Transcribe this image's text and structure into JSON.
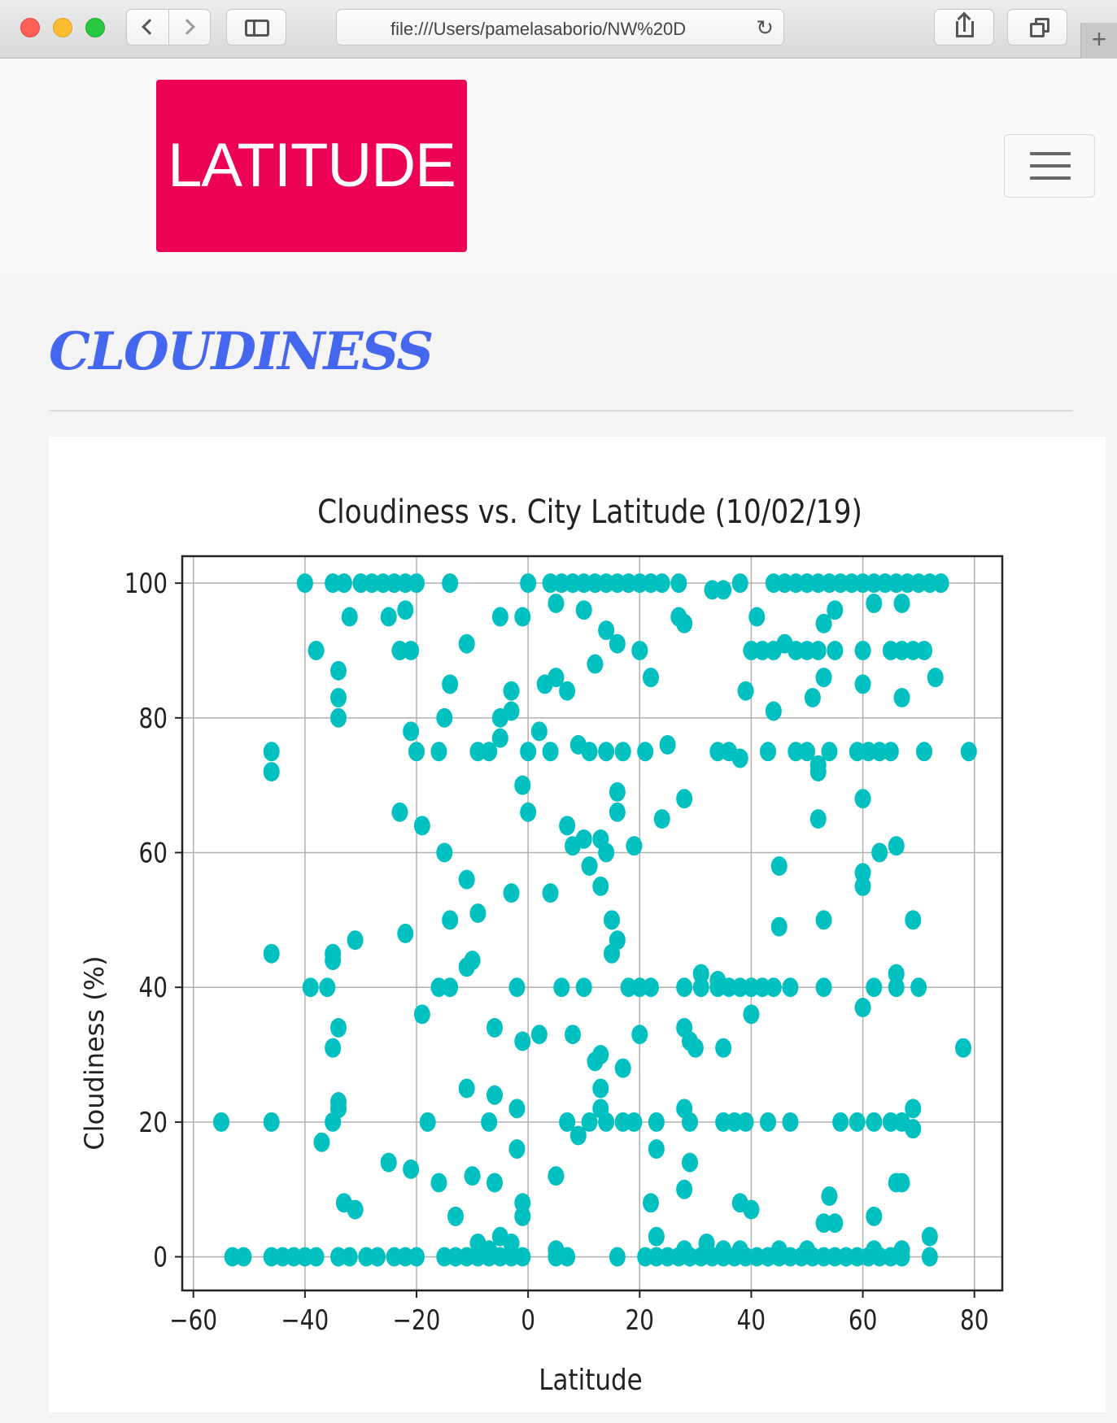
{
  "browser": {
    "url": "file:///Users/pamelasaborio/NW%20D"
  },
  "navbar": {
    "brand": "LATITUDE"
  },
  "page": {
    "heading": "CLOUDINESS"
  },
  "colors": {
    "brand": "#ec0157",
    "heading": "#4566ee",
    "points": "#00c0c0"
  },
  "chart_data": {
    "type": "scatter",
    "title": "Cloudiness vs. City Latitude (10/02/19)",
    "xlabel": "Latitude",
    "ylabel": "Cloudiness (%)",
    "xlim": [
      -62,
      85
    ],
    "ylim": [
      -5,
      104
    ],
    "xticks": [
      -60,
      -40,
      -20,
      0,
      20,
      40,
      60,
      80
    ],
    "yticks": [
      0,
      20,
      40,
      60,
      80,
      100
    ],
    "xtick_labels": [
      "−60",
      "−40",
      "−20",
      "0",
      "20",
      "40",
      "60",
      "80"
    ],
    "ytick_labels": [
      "0",
      "20",
      "40",
      "60",
      "80",
      "100"
    ],
    "grid": true,
    "series": [
      {
        "color": "#00c0c0",
        "points": [
          [
            -40,
            100
          ],
          [
            -35,
            100
          ],
          [
            -33,
            100
          ],
          [
            -30,
            100
          ],
          [
            -28,
            100
          ],
          [
            -26,
            100
          ],
          [
            -24,
            100
          ],
          [
            -22,
            100
          ],
          [
            -20,
            100
          ],
          [
            -14,
            100
          ],
          [
            0,
            100
          ],
          [
            4,
            100
          ],
          [
            6,
            100
          ],
          [
            8,
            100
          ],
          [
            10,
            100
          ],
          [
            12,
            100
          ],
          [
            14,
            100
          ],
          [
            16,
            100
          ],
          [
            18,
            100
          ],
          [
            20,
            100
          ],
          [
            22,
            100
          ],
          [
            24,
            100
          ],
          [
            27,
            100
          ],
          [
            33,
            99
          ],
          [
            35,
            99
          ],
          [
            38,
            100
          ],
          [
            44,
            100
          ],
          [
            46,
            100
          ],
          [
            48,
            100
          ],
          [
            50,
            100
          ],
          [
            52,
            100
          ],
          [
            54,
            100
          ],
          [
            56,
            100
          ],
          [
            58,
            100
          ],
          [
            60,
            100
          ],
          [
            62,
            100
          ],
          [
            64,
            100
          ],
          [
            66,
            100
          ],
          [
            68,
            100
          ],
          [
            70,
            100
          ],
          [
            72,
            100
          ],
          [
            74,
            100
          ],
          [
            -32,
            95
          ],
          [
            -25,
            95
          ],
          [
            -22,
            96
          ],
          [
            -5,
            95
          ],
          [
            -1,
            95
          ],
          [
            5,
            97
          ],
          [
            10,
            96
          ],
          [
            14,
            93
          ],
          [
            16,
            91
          ],
          [
            27,
            95
          ],
          [
            28,
            94
          ],
          [
            41,
            95
          ],
          [
            53,
            94
          ],
          [
            55,
            96
          ],
          [
            62,
            97
          ],
          [
            67,
            97
          ],
          [
            -38,
            90
          ],
          [
            -23,
            90
          ],
          [
            -21,
            90
          ],
          [
            -11,
            91
          ],
          [
            12,
            88
          ],
          [
            20,
            90
          ],
          [
            40,
            90
          ],
          [
            42,
            90
          ],
          [
            44,
            90
          ],
          [
            46,
            91
          ],
          [
            48,
            90
          ],
          [
            50,
            90
          ],
          [
            52,
            90
          ],
          [
            55,
            90
          ],
          [
            60,
            90
          ],
          [
            65,
            90
          ],
          [
            67,
            90
          ],
          [
            69,
            90
          ],
          [
            71,
            90
          ],
          [
            -34,
            87
          ],
          [
            -14,
            85
          ],
          [
            -3,
            84
          ],
          [
            3,
            85
          ],
          [
            5,
            86
          ],
          [
            7,
            84
          ],
          [
            22,
            86
          ],
          [
            39,
            84
          ],
          [
            44,
            81
          ],
          [
            51,
            83
          ],
          [
            53,
            86
          ],
          [
            60,
            85
          ],
          [
            67,
            83
          ],
          [
            73,
            86
          ],
          [
            -34,
            83
          ],
          [
            -34,
            80
          ],
          [
            -15,
            80
          ],
          [
            -5,
            80
          ],
          [
            -3,
            81
          ],
          [
            -21,
            78
          ],
          [
            -20,
            75
          ],
          [
            -16,
            75
          ],
          [
            -9,
            75
          ],
          [
            -7,
            75
          ],
          [
            -5,
            77
          ],
          [
            0,
            75
          ],
          [
            2,
            78
          ],
          [
            4,
            75
          ],
          [
            9,
            76
          ],
          [
            11,
            75
          ],
          [
            14,
            75
          ],
          [
            17,
            75
          ],
          [
            21,
            75
          ],
          [
            25,
            76
          ],
          [
            34,
            75
          ],
          [
            36,
            75
          ],
          [
            38,
            74
          ],
          [
            43,
            75
          ],
          [
            48,
            75
          ],
          [
            50,
            75
          ],
          [
            52,
            73
          ],
          [
            54,
            75
          ],
          [
            59,
            75
          ],
          [
            61,
            75
          ],
          [
            63,
            75
          ],
          [
            65,
            75
          ],
          [
            71,
            75
          ],
          [
            79,
            75
          ],
          [
            -46,
            75
          ],
          [
            -46,
            72
          ],
          [
            -1,
            70
          ],
          [
            0,
            66
          ],
          [
            16,
            69
          ],
          [
            16,
            66
          ],
          [
            24,
            65
          ],
          [
            28,
            68
          ],
          [
            52,
            72
          ],
          [
            52,
            65
          ],
          [
            60,
            68
          ],
          [
            -23,
            66
          ],
          [
            -19,
            64
          ],
          [
            7,
            64
          ],
          [
            8,
            61
          ],
          [
            10,
            62
          ],
          [
            13,
            62
          ],
          [
            14,
            60
          ],
          [
            19,
            61
          ],
          [
            63,
            60
          ],
          [
            66,
            61
          ],
          [
            -15,
            60
          ],
          [
            -11,
            56
          ],
          [
            -3,
            54
          ],
          [
            4,
            54
          ],
          [
            11,
            58
          ],
          [
            13,
            55
          ],
          [
            15,
            50
          ],
          [
            16,
            47
          ],
          [
            15,
            45
          ],
          [
            45,
            58
          ],
          [
            45,
            49
          ],
          [
            53,
            50
          ],
          [
            60,
            55
          ],
          [
            60,
            57
          ],
          [
            69,
            50
          ],
          [
            -46,
            45
          ],
          [
            -35,
            45
          ],
          [
            -35,
            44
          ],
          [
            -31,
            47
          ],
          [
            -22,
            48
          ],
          [
            -14,
            50
          ],
          [
            -9,
            51
          ],
          [
            -10,
            44
          ],
          [
            -11,
            43
          ],
          [
            -39,
            40
          ],
          [
            -36,
            40
          ],
          [
            -16,
            40
          ],
          [
            -14,
            40
          ],
          [
            -2,
            40
          ],
          [
            6,
            40
          ],
          [
            10,
            40
          ],
          [
            18,
            40
          ],
          [
            20,
            40
          ],
          [
            22,
            40
          ],
          [
            28,
            40
          ],
          [
            31,
            40
          ],
          [
            34,
            40
          ],
          [
            36,
            40
          ],
          [
            38,
            40
          ],
          [
            40,
            40
          ],
          [
            42,
            40
          ],
          [
            44,
            40
          ],
          [
            47,
            40
          ],
          [
            53,
            40
          ],
          [
            62,
            40
          ],
          [
            66,
            40
          ],
          [
            70,
            40
          ],
          [
            31,
            42
          ],
          [
            34,
            41
          ],
          [
            66,
            42
          ],
          [
            -34,
            34
          ],
          [
            -35,
            31
          ],
          [
            -19,
            36
          ],
          [
            -6,
            34
          ],
          [
            -1,
            32
          ],
          [
            2,
            33
          ],
          [
            8,
            33
          ],
          [
            12,
            29
          ],
          [
            13,
            30
          ],
          [
            17,
            28
          ],
          [
            20,
            33
          ],
          [
            28,
            34
          ],
          [
            29,
            32
          ],
          [
            30,
            31
          ],
          [
            35,
            31
          ],
          [
            40,
            36
          ],
          [
            60,
            37
          ],
          [
            78,
            31
          ],
          [
            -55,
            20
          ],
          [
            -46,
            20
          ],
          [
            -37,
            17
          ],
          [
            -35,
            20
          ],
          [
            -34,
            22
          ],
          [
            -34,
            23
          ],
          [
            -18,
            20
          ],
          [
            -11,
            25
          ],
          [
            -7,
            20
          ],
          [
            -6,
            24
          ],
          [
            -2,
            22
          ],
          [
            7,
            20
          ],
          [
            9,
            18
          ],
          [
            11,
            20
          ],
          [
            13,
            22
          ],
          [
            14,
            20
          ],
          [
            17,
            20
          ],
          [
            19,
            20
          ],
          [
            23,
            20
          ],
          [
            28,
            22
          ],
          [
            29,
            20
          ],
          [
            35,
            20
          ],
          [
            37,
            20
          ],
          [
            39,
            20
          ],
          [
            43,
            20
          ],
          [
            47,
            20
          ],
          [
            56,
            20
          ],
          [
            59,
            20
          ],
          [
            62,
            20
          ],
          [
            65,
            20
          ],
          [
            67,
            20
          ],
          [
            69,
            19
          ],
          [
            69,
            22
          ],
          [
            -25,
            14
          ],
          [
            -21,
            13
          ],
          [
            -16,
            11
          ],
          [
            -10,
            12
          ],
          [
            -6,
            11
          ],
          [
            -2,
            16
          ],
          [
            5,
            12
          ],
          [
            13,
            25
          ],
          [
            23,
            16
          ],
          [
            28,
            10
          ],
          [
            29,
            14
          ],
          [
            66,
            11
          ],
          [
            67,
            11
          ],
          [
            -33,
            8
          ],
          [
            -31,
            7
          ],
          [
            -13,
            6
          ],
          [
            -1,
            8
          ],
          [
            -1,
            6
          ],
          [
            22,
            8
          ],
          [
            23,
            3
          ],
          [
            38,
            8
          ],
          [
            40,
            7
          ],
          [
            53,
            5
          ],
          [
            54,
            9
          ],
          [
            55,
            5
          ],
          [
            62,
            6
          ],
          [
            -53,
            0
          ],
          [
            -51,
            0
          ],
          [
            -46,
            0
          ],
          [
            -44,
            0
          ],
          [
            -42,
            0
          ],
          [
            -40,
            0
          ],
          [
            -38,
            0
          ],
          [
            -34,
            0
          ],
          [
            -32,
            0
          ],
          [
            -29,
            0
          ],
          [
            -27,
            0
          ],
          [
            -24,
            0
          ],
          [
            -22,
            0
          ],
          [
            -20,
            0
          ],
          [
            -15,
            0
          ],
          [
            -13,
            0
          ],
          [
            -11,
            0
          ],
          [
            -9,
            0
          ],
          [
            -7,
            0
          ],
          [
            -5,
            0
          ],
          [
            -3,
            0
          ],
          [
            -1,
            0
          ],
          [
            5,
            0
          ],
          [
            7,
            0
          ],
          [
            16,
            0
          ],
          [
            21,
            0
          ],
          [
            23,
            0
          ],
          [
            25,
            0
          ],
          [
            27,
            0
          ],
          [
            29,
            0
          ],
          [
            31,
            0
          ],
          [
            33,
            0
          ],
          [
            35,
            0
          ],
          [
            37,
            0
          ],
          [
            39,
            0
          ],
          [
            41,
            0
          ],
          [
            43,
            0
          ],
          [
            45,
            0
          ],
          [
            47,
            0
          ],
          [
            49,
            0
          ],
          [
            51,
            0
          ],
          [
            53,
            0
          ],
          [
            55,
            0
          ],
          [
            57,
            0
          ],
          [
            59,
            0
          ],
          [
            61,
            0
          ],
          [
            63,
            0
          ],
          [
            65,
            0
          ],
          [
            67,
            0
          ],
          [
            72,
            0
          ],
          [
            72,
            3
          ],
          [
            -9,
            2
          ],
          [
            -7,
            1
          ],
          [
            -5,
            3
          ],
          [
            -3,
            2
          ],
          [
            5,
            1
          ],
          [
            28,
            1
          ],
          [
            32,
            2
          ],
          [
            35,
            1
          ],
          [
            38,
            1
          ],
          [
            45,
            1
          ],
          [
            50,
            1
          ],
          [
            62,
            1
          ],
          [
            67,
            1
          ]
        ]
      }
    ]
  }
}
